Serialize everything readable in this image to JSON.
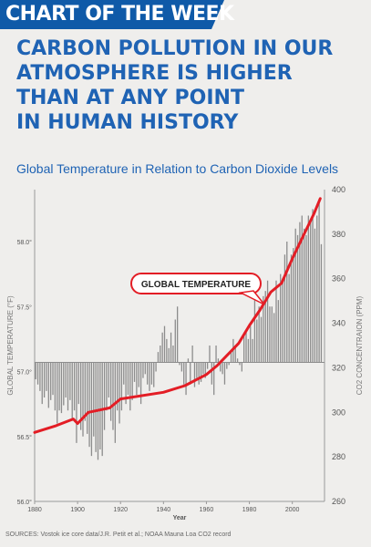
{
  "banner": {
    "text": "CHART OF THE WEEK"
  },
  "headline": [
    "CARBON POLLUTION IN OUR",
    "ATMOSPHERE IS HIGHER",
    "THAN AT ANY POINT",
    "IN HUMAN HISTORY"
  ],
  "subtitle": "Global Temperature in Relation to Carbon Dioxide Levels",
  "sources": "SOURCES: Vostok ice core data/J.R. Petit et al.; NOAA Mauna Loa CO2 record",
  "colors": {
    "brand_blue": "#0f5aa8",
    "co2_line": "#e31d25",
    "bars": "#8c8c8c"
  },
  "chart_data": {
    "type": "bar",
    "xlabel": "Year",
    "ylabel_left": "GLOBAL TEMPERATURE (°F)",
    "ylabel_right": "CO2 CONCENTRAION (PPM)",
    "xlim": [
      1880,
      2015
    ],
    "ylim_left": [
      56.0,
      58.4
    ],
    "ylim_right": [
      260,
      400
    ],
    "baseline": 57.07,
    "x_ticks": [
      1880,
      1900,
      1920,
      1940,
      1960,
      1980,
      2000
    ],
    "y_left_ticks": [
      "56.0°",
      "56.5°",
      "57.0°",
      "57.5°",
      "58.0°"
    ],
    "y_left_tick_values": [
      56.0,
      56.5,
      57.0,
      57.5,
      58.0
    ],
    "y_right_ticks": [
      260,
      280,
      300,
      320,
      340,
      360,
      380,
      400
    ],
    "annotation": "GLOBAL TEMPERATURE",
    "series": [
      {
        "name": "Global Temperature",
        "kind": "bar",
        "x_start": 1880,
        "values": [
          56.94,
          56.9,
          56.85,
          56.75,
          56.8,
          56.85,
          56.72,
          56.78,
          56.82,
          56.7,
          56.6,
          56.7,
          56.68,
          56.74,
          56.8,
          56.7,
          56.78,
          56.62,
          56.7,
          56.45,
          56.75,
          56.55,
          56.5,
          56.62,
          56.52,
          56.42,
          56.35,
          56.5,
          56.38,
          56.32,
          56.4,
          56.35,
          56.55,
          56.7,
          56.8,
          56.62,
          56.55,
          56.45,
          56.7,
          56.6,
          56.7,
          56.9,
          56.75,
          56.82,
          56.7,
          56.78,
          56.92,
          56.82,
          56.88,
          56.75,
          56.95,
          56.98,
          56.9,
          56.85,
          56.9,
          56.88,
          57.0,
          57.15,
          57.2,
          57.3,
          57.35,
          57.25,
          57.18,
          57.3,
          57.2,
          57.4,
          57.5,
          57.05,
          57.0,
          56.9,
          56.82,
          57.1,
          56.9,
          57.2,
          56.88,
          56.95,
          56.9,
          56.92,
          56.98,
          56.95,
          57.02,
          57.2,
          56.9,
          56.82,
          57.2,
          57.1,
          57.0,
          56.98,
          56.9,
          57.02,
          57.05,
          57.15,
          57.25,
          57.2,
          57.1,
          57.05,
          57.0,
          57.3,
          57.3,
          57.25,
          57.35,
          57.25,
          57.55,
          57.4,
          57.5,
          57.42,
          57.58,
          57.62,
          57.7,
          57.5,
          57.5,
          57.45,
          57.7,
          57.55,
          57.75,
          57.72,
          57.9,
          58.0,
          57.75,
          57.9,
          57.95,
          58.1,
          58.05,
          58.15,
          58.2,
          58.1,
          58.05,
          58.2,
          58.15,
          58.25,
          58.1,
          58.2,
          58.3,
          57.98
        ]
      },
      {
        "name": "CO2 concentration",
        "kind": "line",
        "axis": "right",
        "points": [
          [
            1880,
            291
          ],
          [
            1890,
            294
          ],
          [
            1898,
            297
          ],
          [
            1900,
            295
          ],
          [
            1905,
            300
          ],
          [
            1915,
            302
          ],
          [
            1920,
            306
          ],
          [
            1940,
            309
          ],
          [
            1950,
            312
          ],
          [
            1960,
            317
          ],
          [
            1965,
            321
          ],
          [
            1970,
            326
          ],
          [
            1975,
            331
          ],
          [
            1980,
            339
          ],
          [
            1985,
            346
          ],
          [
            1990,
            354
          ],
          [
            1995,
            358
          ],
          [
            2000,
            369
          ],
          [
            2005,
            379
          ],
          [
            2010,
            389
          ],
          [
            2013,
            396
          ]
        ]
      }
    ]
  }
}
